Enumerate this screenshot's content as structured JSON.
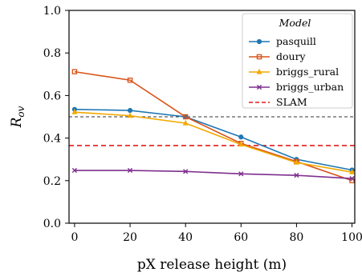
{
  "chart_data": {
    "type": "line",
    "xlabel": "pX release height (m)",
    "ylabel_main": "R",
    "ylabel_sub": "ov",
    "x": [
      0,
      20,
      40,
      60,
      80,
      100
    ],
    "xlim": [
      -2,
      101
    ],
    "ylim": [
      0.0,
      1.0
    ],
    "xticks": [
      "0",
      "20",
      "40",
      "60",
      "80",
      "100"
    ],
    "yticks": [
      "0.0",
      "0.2",
      "0.4",
      "0.6",
      "0.8",
      "1.0"
    ],
    "series": [
      {
        "name": "pasquill",
        "color": "#1f77b4",
        "marker": "circle",
        "values": [
          0.535,
          0.53,
          0.5,
          0.405,
          0.3,
          0.25
        ]
      },
      {
        "name": "doury",
        "color": "#d95319",
        "marker": "square",
        "values": [
          0.712,
          0.672,
          0.5,
          0.375,
          0.29,
          0.2
        ]
      },
      {
        "name": "briggs_rural",
        "color": "#f2a900",
        "marker": "triangle",
        "values": [
          0.522,
          0.505,
          0.47,
          0.37,
          0.285,
          0.24
        ]
      },
      {
        "name": "briggs_urban",
        "color": "#7e2f8e",
        "marker": "x",
        "values": [
          0.248,
          0.248,
          0.243,
          0.232,
          0.225,
          0.21
        ]
      }
    ],
    "reference_lines": [
      {
        "name": "SLAM",
        "value": 0.365,
        "color": "#e31a1c",
        "style": "dashed"
      },
      {
        "name": "",
        "value": 0.5,
        "color": "#333333",
        "style": "dashed"
      }
    ],
    "legend": {
      "title": "Model",
      "placement": "top-right"
    },
    "grid": false
  }
}
